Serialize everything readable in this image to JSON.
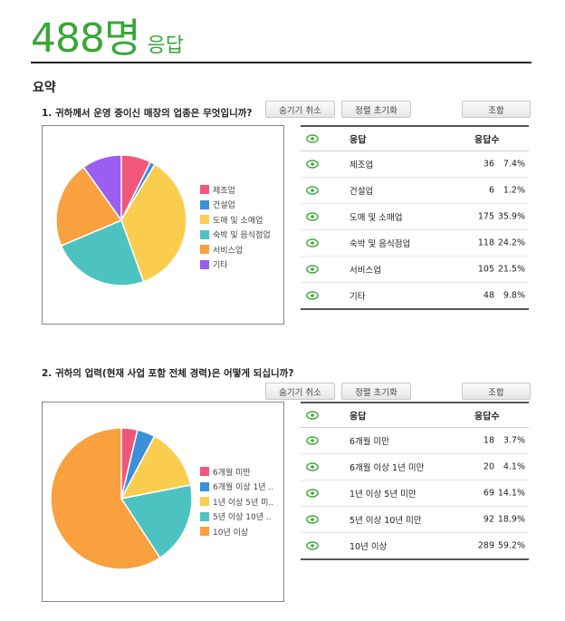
{
  "header": {
    "count": "488명",
    "label": "응답"
  },
  "summary_title": "요약",
  "buttons": {
    "hide_cancel": "숨기기 취소",
    "sort_reset": "정렬 초기화",
    "view": "조합"
  },
  "table_headers": {
    "answer": "응답",
    "count": "응답수"
  },
  "questions": [
    {
      "title": "1. 귀하께서 운영 중이신 매장의 업종은 무엇입니까?",
      "rows": [
        {
          "label": "제조업",
          "count": "36",
          "pct": "7.4%"
        },
        {
          "label": "건설업",
          "count": "6",
          "pct": "1.2%"
        },
        {
          "label": "도매 및 소매업",
          "count": "175",
          "pct": "35.9%"
        },
        {
          "label": "숙박 및 음식점업",
          "count": "118",
          "pct": "24.2%"
        },
        {
          "label": "서비스업",
          "count": "105",
          "pct": "21.5%"
        },
        {
          "label": "기타",
          "count": "48",
          "pct": "9.8%"
        }
      ],
      "legend": [
        "제조업",
        "건설업",
        "도매 및 소매업",
        "숙박 및 음식점업",
        "서비스업",
        "기타"
      ]
    },
    {
      "title": "2. 귀하의 업력(현재 사업 포함 전체 경력)은 어떻게 되십니까?",
      "rows": [
        {
          "label": "6개월 미만",
          "count": "18",
          "pct": "3.7%"
        },
        {
          "label": "6개월 이상 1년 미만",
          "count": "20",
          "pct": "4.1%"
        },
        {
          "label": "1년 이상 5년 미만",
          "count": "69",
          "pct": "14.1%"
        },
        {
          "label": "5년 이상 10년 미만",
          "count": "92",
          "pct": "18.9%"
        },
        {
          "label": "10년 이상",
          "count": "289",
          "pct": "59.2%"
        }
      ],
      "legend": [
        "6개월 미만",
        "6개월 이상 1년 ..",
        "1년 이상 5년 미..",
        "5년 이상 10년 ..",
        "10년 이상"
      ]
    }
  ],
  "chart_data": [
    {
      "type": "pie",
      "categories": [
        "제조업",
        "건설업",
        "도매 및 소매업",
        "숙박 및 음식점업",
        "서비스업",
        "기타"
      ],
      "values": [
        36,
        6,
        175,
        118,
        105,
        48
      ],
      "colors": [
        "#f0577a",
        "#3b8fd6",
        "#fbcd4e",
        "#4cc3c0",
        "#f9a03f",
        "#9a5ff0"
      ],
      "legend_position": "right"
    },
    {
      "type": "pie",
      "categories": [
        "6개월 미만",
        "6개월 이상 1년 미만",
        "1년 이상 5년 미만",
        "5년 이상 10년 미만",
        "10년 이상"
      ],
      "values": [
        18,
        20,
        69,
        92,
        289
      ],
      "colors": [
        "#f0577a",
        "#3b8fd6",
        "#fbcd4e",
        "#4cc3c0",
        "#f9a03f"
      ],
      "legend_position": "right"
    }
  ]
}
